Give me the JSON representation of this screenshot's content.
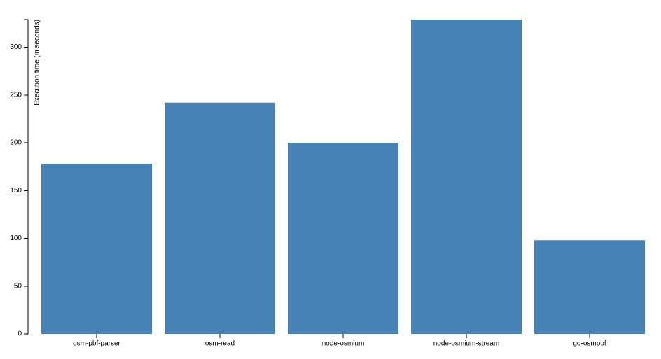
{
  "chart_data": {
    "type": "bar",
    "y_label": "Execution time (in seconds)",
    "categories": [
      "osm-pbf-parser",
      "osm-read",
      "node-osmium",
      "node-osmium-stream",
      "go-osmpbf"
    ],
    "values": [
      178,
      242,
      200,
      329,
      98
    ],
    "color": "#4682b4",
    "ylim": [
      0,
      329
    ],
    "yticks": [
      0,
      50,
      100,
      150,
      200,
      250,
      300
    ]
  }
}
